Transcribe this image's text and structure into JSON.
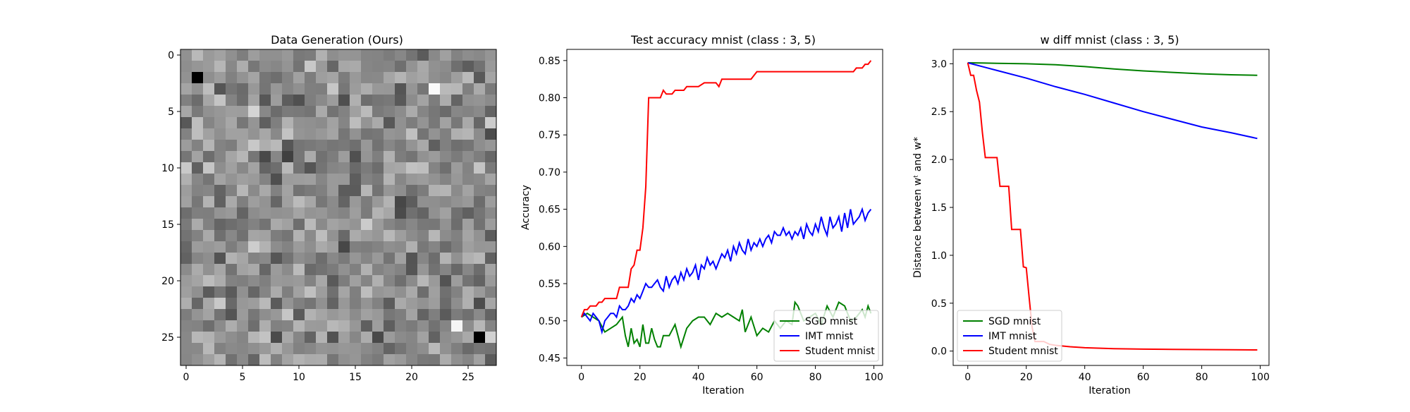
{
  "chart_data": [
    {
      "type": "heatmap",
      "title": "Data Generation (Ours)",
      "rows": 28,
      "cols": 28,
      "colormap": "gray",
      "x_ticks": [
        0,
        5,
        10,
        15,
        20,
        25
      ],
      "y_ticks": [
        0,
        5,
        10,
        15,
        20,
        25
      ],
      "xlim": [
        -0.5,
        27.5
      ],
      "ylim": [
        27.5,
        -0.5
      ]
    },
    {
      "type": "line",
      "title": "Test accuracy mnist (class : 3, 5)",
      "xlabel": "Iteration",
      "ylabel": "Accuracy",
      "xlim": [
        -5,
        103
      ],
      "ylim": [
        0.44,
        0.865
      ],
      "x_ticks": [
        0,
        20,
        40,
        60,
        80,
        100
      ],
      "y_ticks": [
        0.45,
        0.5,
        0.55,
        0.6,
        0.65,
        0.7,
        0.75,
        0.8,
        0.85
      ],
      "y_tick_labels": [
        "0.45",
        "0.50",
        "0.55",
        "0.60",
        "0.65",
        "0.70",
        "0.75",
        "0.80",
        "0.85"
      ],
      "legend_position": "lower-right",
      "grid": false,
      "series": [
        {
          "name": "SGD mnist",
          "color": "#008000",
          "x": [
            0,
            2,
            4,
            6,
            8,
            10,
            12,
            14,
            15,
            16,
            17,
            18,
            19,
            20,
            21,
            22,
            23,
            24,
            25,
            26,
            27,
            28,
            30,
            32,
            34,
            36,
            38,
            40,
            42,
            44,
            46,
            48,
            50,
            52,
            54,
            55,
            56,
            58,
            60,
            62,
            64,
            66,
            68,
            70,
            72,
            73,
            74,
            76,
            78,
            80,
            82,
            84,
            86,
            88,
            90,
            92,
            94,
            96,
            97,
            98,
            99
          ],
          "y": [
            0.505,
            0.51,
            0.505,
            0.5,
            0.485,
            0.49,
            0.495,
            0.505,
            0.48,
            0.465,
            0.49,
            0.47,
            0.475,
            0.465,
            0.495,
            0.47,
            0.47,
            0.49,
            0.475,
            0.465,
            0.465,
            0.48,
            0.48,
            0.495,
            0.465,
            0.49,
            0.5,
            0.505,
            0.505,
            0.495,
            0.51,
            0.505,
            0.51,
            0.505,
            0.5,
            0.515,
            0.485,
            0.505,
            0.48,
            0.49,
            0.485,
            0.5,
            0.49,
            0.5,
            0.495,
            0.525,
            0.52,
            0.5,
            0.505,
            0.51,
            0.495,
            0.52,
            0.505,
            0.525,
            0.52,
            0.5,
            0.505,
            0.515,
            0.505,
            0.52,
            0.51
          ]
        },
        {
          "name": "IMT mnist",
          "color": "#0000ff",
          "x": [
            0,
            1,
            2,
            3,
            4,
            5,
            6,
            7,
            8,
            9,
            10,
            11,
            12,
            13,
            14,
            15,
            16,
            17,
            18,
            19,
            20,
            21,
            22,
            23,
            24,
            25,
            26,
            27,
            28,
            29,
            30,
            31,
            32,
            33,
            34,
            35,
            36,
            37,
            38,
            39,
            40,
            41,
            42,
            43,
            44,
            45,
            46,
            47,
            48,
            49,
            50,
            51,
            52,
            53,
            54,
            55,
            56,
            57,
            58,
            59,
            60,
            61,
            62,
            63,
            64,
            65,
            66,
            67,
            68,
            69,
            70,
            71,
            72,
            73,
            74,
            75,
            76,
            77,
            78,
            79,
            80,
            81,
            82,
            83,
            84,
            85,
            86,
            87,
            88,
            89,
            90,
            91,
            92,
            93,
            94,
            95,
            96,
            97,
            98,
            99
          ],
          "y": [
            0.505,
            0.51,
            0.505,
            0.5,
            0.51,
            0.505,
            0.5,
            0.485,
            0.5,
            0.505,
            0.51,
            0.51,
            0.505,
            0.52,
            0.515,
            0.515,
            0.52,
            0.53,
            0.525,
            0.535,
            0.53,
            0.54,
            0.55,
            0.545,
            0.545,
            0.55,
            0.555,
            0.545,
            0.54,
            0.56,
            0.545,
            0.555,
            0.56,
            0.55,
            0.565,
            0.555,
            0.57,
            0.56,
            0.565,
            0.575,
            0.555,
            0.575,
            0.57,
            0.585,
            0.575,
            0.58,
            0.57,
            0.58,
            0.59,
            0.585,
            0.595,
            0.58,
            0.6,
            0.59,
            0.605,
            0.595,
            0.59,
            0.61,
            0.595,
            0.605,
            0.6,
            0.61,
            0.6,
            0.61,
            0.615,
            0.605,
            0.62,
            0.615,
            0.615,
            0.625,
            0.615,
            0.62,
            0.61,
            0.62,
            0.615,
            0.625,
            0.61,
            0.63,
            0.62,
            0.615,
            0.63,
            0.62,
            0.64,
            0.625,
            0.615,
            0.64,
            0.625,
            0.63,
            0.64,
            0.62,
            0.645,
            0.625,
            0.65,
            0.63,
            0.635,
            0.64,
            0.65,
            0.635,
            0.645,
            0.65
          ]
        },
        {
          "name": "Student mnist",
          "color": "#ff0000",
          "x": [
            0,
            1,
            2,
            3,
            4,
            5,
            6,
            7,
            8,
            9,
            10,
            11,
            12,
            13,
            14,
            15,
            16,
            17,
            18,
            19,
            20,
            21,
            22,
            23,
            24,
            25,
            26,
            27,
            28,
            29,
            30,
            31,
            32,
            33,
            34,
            35,
            36,
            37,
            38,
            39,
            40,
            42,
            44,
            46,
            47,
            48,
            50,
            52,
            54,
            56,
            58,
            60,
            62,
            64,
            66,
            68,
            70,
            72,
            74,
            76,
            78,
            80,
            82,
            84,
            86,
            88,
            90,
            92,
            93,
            94,
            96,
            97,
            98,
            99
          ],
          "y": [
            0.505,
            0.515,
            0.515,
            0.52,
            0.52,
            0.52,
            0.525,
            0.525,
            0.53,
            0.53,
            0.53,
            0.53,
            0.53,
            0.545,
            0.545,
            0.545,
            0.545,
            0.57,
            0.575,
            0.595,
            0.595,
            0.625,
            0.68,
            0.8,
            0.8,
            0.8,
            0.8,
            0.8,
            0.81,
            0.805,
            0.805,
            0.805,
            0.81,
            0.81,
            0.81,
            0.81,
            0.815,
            0.815,
            0.815,
            0.815,
            0.815,
            0.82,
            0.82,
            0.82,
            0.815,
            0.825,
            0.825,
            0.825,
            0.825,
            0.825,
            0.825,
            0.835,
            0.835,
            0.835,
            0.835,
            0.835,
            0.835,
            0.835,
            0.835,
            0.835,
            0.835,
            0.835,
            0.835,
            0.835,
            0.835,
            0.835,
            0.835,
            0.835,
            0.835,
            0.84,
            0.84,
            0.845,
            0.845,
            0.85
          ]
        }
      ]
    },
    {
      "type": "line",
      "title": "w diff mnist (class : 3, 5)",
      "xlabel": "Iteration",
      "ylabel": "Distance between wᵗ and w*",
      "xlim": [
        -5,
        103
      ],
      "ylim": [
        -0.15,
        3.15
      ],
      "x_ticks": [
        0,
        20,
        40,
        60,
        80,
        100
      ],
      "y_ticks": [
        0.0,
        0.5,
        1.0,
        1.5,
        2.0,
        2.5,
        3.0
      ],
      "y_tick_labels": [
        "0.0",
        "0.5",
        "1.0",
        "1.5",
        "2.0",
        "2.5",
        "3.0"
      ],
      "legend_position": "lower-left",
      "grid": false,
      "series": [
        {
          "name": "SGD mnist",
          "color": "#008000",
          "x": [
            0,
            10,
            20,
            30,
            40,
            50,
            60,
            70,
            80,
            90,
            99
          ],
          "y": [
            3.01,
            3.005,
            3.0,
            2.99,
            2.97,
            2.945,
            2.925,
            2.91,
            2.895,
            2.885,
            2.88
          ]
        },
        {
          "name": "IMT mnist",
          "color": "#0000ff",
          "x": [
            0,
            10,
            20,
            30,
            40,
            50,
            60,
            70,
            80,
            90,
            99
          ],
          "y": [
            3.01,
            2.93,
            2.85,
            2.76,
            2.68,
            2.59,
            2.5,
            2.42,
            2.34,
            2.28,
            2.22
          ]
        },
        {
          "name": "Student mnist",
          "color": "#ff0000",
          "x": [
            0,
            1,
            2,
            3,
            4,
            5,
            6,
            7,
            8,
            9,
            10,
            11,
            12,
            13,
            14,
            15,
            16,
            17,
            18,
            19,
            20,
            21,
            22,
            23,
            24,
            25,
            26,
            28,
            30,
            35,
            40,
            50,
            60,
            70,
            80,
            90,
            99
          ],
          "y": [
            3.01,
            2.88,
            2.88,
            2.72,
            2.6,
            2.28,
            2.02,
            2.02,
            2.02,
            2.02,
            2.02,
            1.72,
            1.72,
            1.72,
            1.72,
            1.27,
            1.27,
            1.27,
            1.27,
            0.88,
            0.87,
            0.55,
            0.25,
            0.1,
            0.1,
            0.1,
            0.1,
            0.07,
            0.06,
            0.045,
            0.035,
            0.025,
            0.02,
            0.018,
            0.016,
            0.014,
            0.012
          ]
        }
      ]
    }
  ]
}
